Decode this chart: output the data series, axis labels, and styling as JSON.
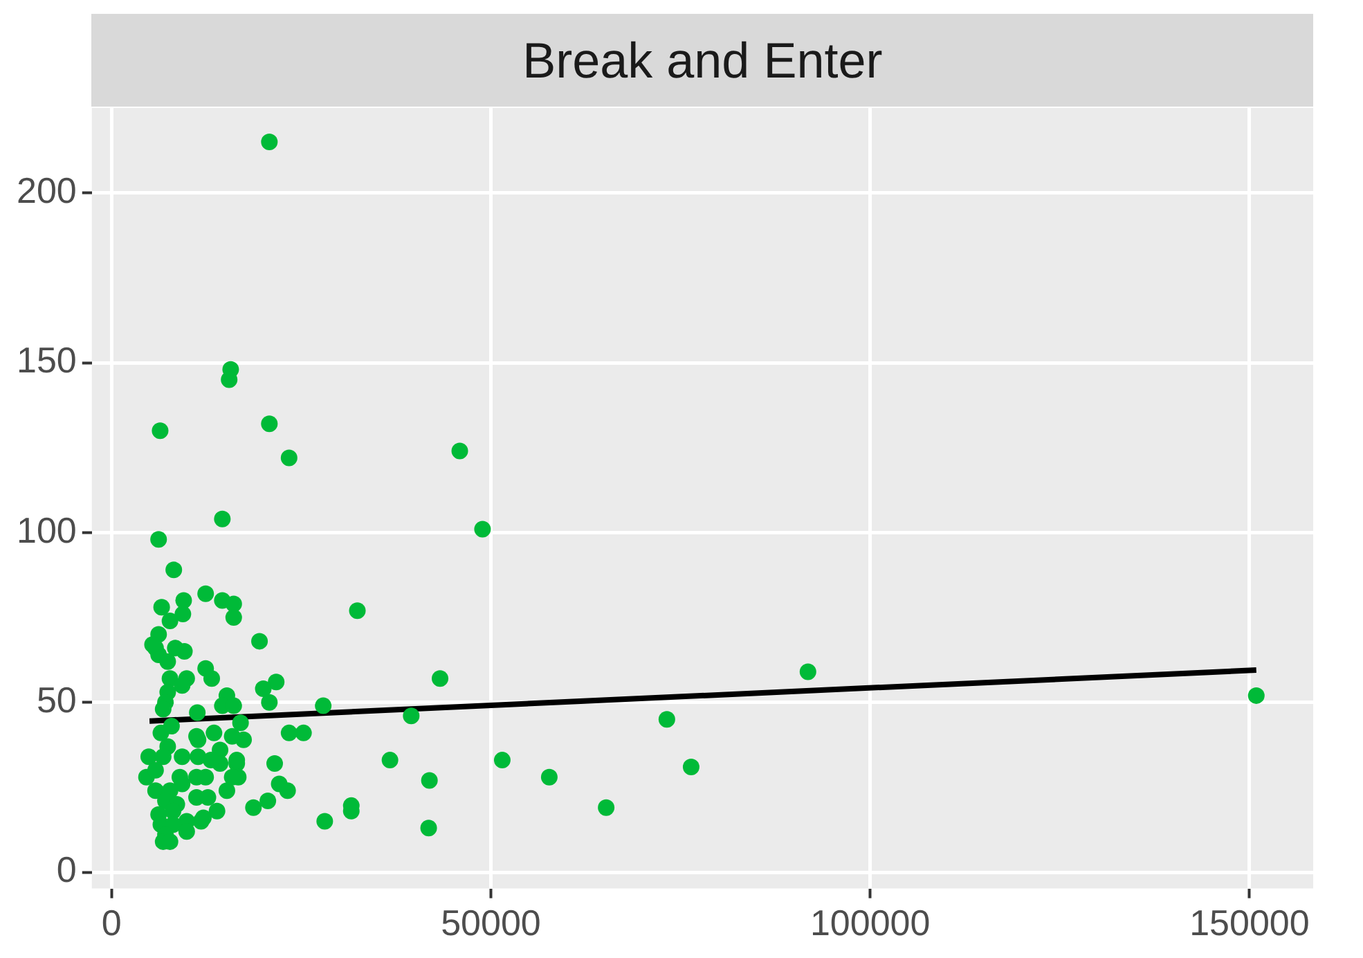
{
  "chart_data": {
    "type": "scatter",
    "title": "Break and Enter",
    "xlim": [
      -2600,
      158400
    ],
    "ylim": [
      -4.8,
      225
    ],
    "xticks": [
      0,
      50000,
      100000,
      150000
    ],
    "yticks": [
      0,
      50,
      100,
      150,
      200
    ],
    "grid": true,
    "legend": false,
    "marker": "circle",
    "series": [
      {
        "color": "#00ba38",
        "x": [
          20800,
          15700,
          15500,
          20800,
          6400,
          23400,
          14600,
          45900,
          48900,
          6200,
          8200,
          6600,
          9500,
          12400,
          14600,
          16100,
          16100,
          9400,
          19500,
          32400,
          43300,
          39500,
          91800,
          73200,
          150900,
          51500,
          36700,
          57700,
          41900,
          76400,
          65200,
          41800,
          31600,
          31600,
          28100,
          27900,
          25300,
          23400,
          21700,
          20000,
          20800,
          21500,
          22100,
          23200,
          20600,
          18700,
          17000,
          17400,
          16500,
          16700,
          15200,
          13900,
          11800,
          7700,
          6200,
          5800,
          6200,
          8400,
          9600,
          7400,
          12400,
          13200,
          9900,
          7700,
          9300,
          7400,
          7100,
          15200,
          14600,
          16100,
          6800,
          11300,
          6500,
          11200,
          11400,
          13500,
          15900,
          7400,
          4900,
          6800,
          9300,
          11400,
          14300,
          14300,
          16500,
          13100,
          4600,
          5800,
          9000,
          11200,
          12400,
          15900,
          9300,
          5800,
          7700,
          11200,
          12700,
          7100,
          8600,
          6200,
          8100,
          12100,
          9900,
          6500,
          8100,
          9900,
          7100,
          6800,
          7700,
          5400,
          7900
        ],
        "values": [
          215,
          148,
          145,
          132,
          130,
          122,
          104,
          124,
          101,
          98,
          89,
          78,
          80,
          82,
          80,
          79,
          75,
          76,
          68,
          77,
          57,
          46,
          59,
          45,
          52,
          33,
          33,
          28,
          27,
          31,
          19,
          13,
          18,
          19.6,
          15,
          49,
          41,
          41,
          56,
          54,
          50,
          32,
          26,
          24,
          21,
          19,
          44,
          39,
          32,
          28,
          24,
          18,
          15,
          74,
          70,
          66,
          64,
          66,
          65,
          62,
          60,
          57,
          57,
          57,
          55,
          53,
          50,
          52,
          49,
          49,
          48,
          47,
          41,
          40,
          39,
          41,
          40,
          37,
          34,
          34,
          34,
          34,
          36,
          32,
          33,
          33,
          28,
          30,
          28,
          28,
          28,
          28,
          26,
          24,
          24,
          22,
          22,
          21,
          20,
          17,
          18,
          16,
          15,
          14,
          14,
          12,
          11,
          9,
          9,
          67,
          43
        ]
      },
      {
        "type": "line",
        "color": "#000000",
        "marker": "none",
        "x": [
          5000,
          150900
        ],
        "values": [
          44.5,
          59.5
        ]
      }
    ]
  }
}
